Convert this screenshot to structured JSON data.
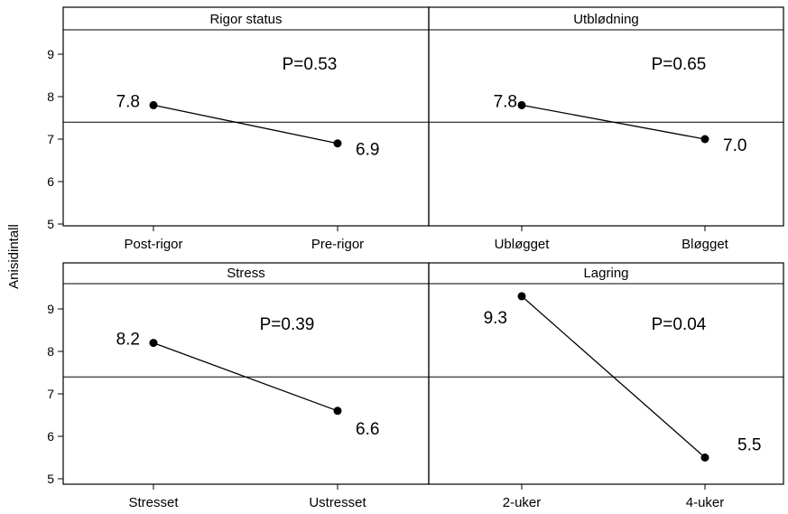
{
  "ylabel": "Anisidintall",
  "chart_data": [
    {
      "type": "line",
      "title": "Rigor status",
      "categories": [
        "Post-rigor",
        "Pre-rigor"
      ],
      "values": [
        7.8,
        6.9
      ],
      "value_labels": [
        "7.8",
        "6.9"
      ],
      "annotation": "P=0.53",
      "reference_line": 7.4,
      "ylim": [
        5,
        9.5
      ],
      "yticks": [
        5,
        6,
        7,
        8,
        9
      ]
    },
    {
      "type": "line",
      "title": "Utblødning",
      "categories": [
        "Ubløgget",
        "Bløgget"
      ],
      "values": [
        7.8,
        7.0
      ],
      "value_labels": [
        "7.8",
        "7.0"
      ],
      "annotation": "P=0.65",
      "reference_line": 7.4,
      "ylim": [
        5,
        9.5
      ],
      "yticks": [
        5,
        6,
        7,
        8,
        9
      ]
    },
    {
      "type": "line",
      "title": "Stress",
      "categories": [
        "Stresset",
        "Ustresset"
      ],
      "values": [
        8.2,
        6.6
      ],
      "value_labels": [
        "8.2",
        "6.6"
      ],
      "annotation": "P=0.39",
      "reference_line": 7.4,
      "ylim": [
        5,
        9.5
      ],
      "yticks": [
        5,
        6,
        7,
        8,
        9
      ]
    },
    {
      "type": "line",
      "title": "Lagring",
      "categories": [
        "2-uker",
        "4-uker"
      ],
      "values": [
        9.3,
        5.5
      ],
      "value_labels": [
        "9.3",
        "5.5"
      ],
      "annotation": "P=0.04",
      "reference_line": 7.4,
      "ylim": [
        5,
        9.5
      ],
      "yticks": [
        5,
        6,
        7,
        8,
        9
      ]
    }
  ]
}
